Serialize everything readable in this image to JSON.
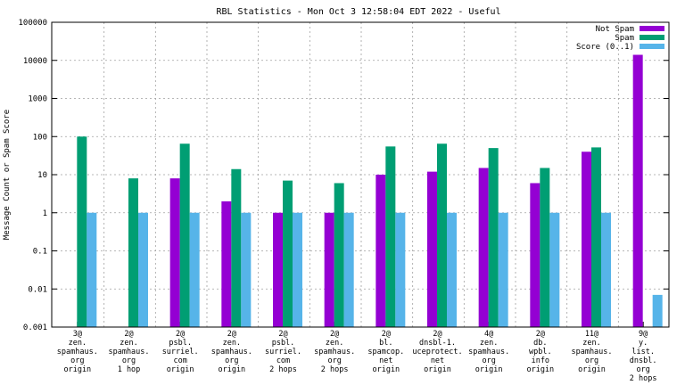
{
  "chart_data": {
    "type": "bar",
    "title": "RBL Statistics - Mon Oct  3 12:58:04 EDT 2022 - Useful",
    "xlabel": "",
    "ylabel": "Message Count or Spam Score",
    "yscale": "log",
    "ylim": [
      0.001,
      100000
    ],
    "y_ticks": [
      "0.001",
      "0.01",
      "0.1",
      "1",
      "10",
      "100",
      "1000",
      "10000",
      "100000"
    ],
    "grid": true,
    "legend_position": "top-right",
    "categories": [
      [
        "3@",
        "zen.",
        "spamhaus.",
        "org",
        "origin"
      ],
      [
        "2@",
        "zen.",
        "spamhaus.",
        "org",
        "1 hop"
      ],
      [
        "2@",
        "psbl.",
        "surriel.",
        "com",
        "origin"
      ],
      [
        "2@",
        "zen.",
        "spamhaus.",
        "org",
        "origin"
      ],
      [
        "2@",
        "psbl.",
        "surriel.",
        "com",
        "2 hops"
      ],
      [
        "2@",
        "zen.",
        "spamhaus.",
        "org",
        "2 hops"
      ],
      [
        "2@",
        "bl.",
        "spamcop.",
        "net",
        "origin"
      ],
      [
        "2@",
        "dnsbl-1.",
        "uceprotect.",
        "net",
        "origin"
      ],
      [
        "4@",
        "zen.",
        "spamhaus.",
        "org",
        "origin"
      ],
      [
        "2@",
        "db.",
        "wpbl.",
        "info",
        "origin"
      ],
      [
        "11@",
        "zen.",
        "spamhaus.",
        "org",
        "origin"
      ],
      [
        "9@",
        "y.",
        "list.",
        "dnsbl.",
        "org",
        "2 hops"
      ]
    ],
    "series": [
      {
        "name": "Not Spam",
        "color": "#9400d3",
        "values": [
          null,
          null,
          8,
          2,
          1,
          1,
          10,
          12,
          15,
          6,
          40,
          14000
        ]
      },
      {
        "name": "Spam",
        "color": "#009e73",
        "values": [
          100,
          8,
          65,
          14,
          7,
          6,
          55,
          65,
          50,
          15,
          52,
          null
        ]
      },
      {
        "name": "Score (0..1)",
        "color": "#56b4e9",
        "values": [
          1,
          1,
          1,
          1,
          1,
          1,
          1,
          1,
          1,
          1,
          1,
          0.007
        ]
      }
    ]
  }
}
